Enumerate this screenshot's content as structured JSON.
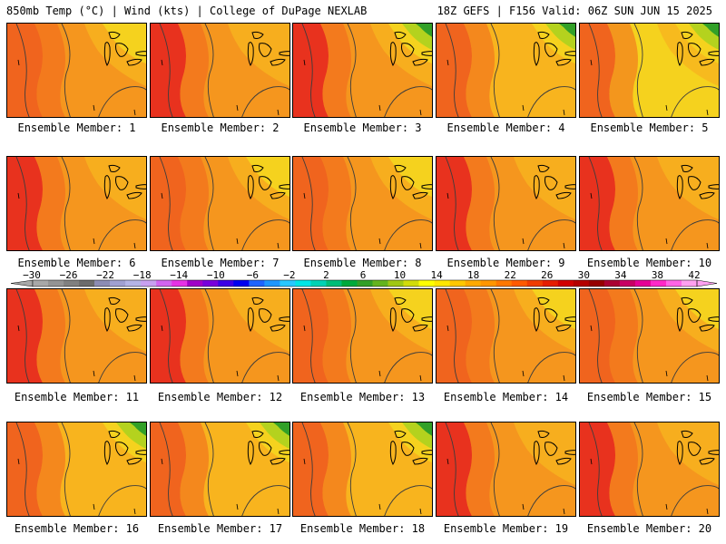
{
  "header": {
    "left": "850mb Temp (°C) | Wind (kts) | College of DuPage NEXLAB",
    "right": "18Z GEFS | F156 Valid: 06Z SUN JUN 15 2025"
  },
  "panels": [
    {
      "label": "Ensemble Member: 1",
      "style": "warm-west"
    },
    {
      "label": "Ensemble Member: 2",
      "style": "hot-west"
    },
    {
      "label": "Ensemble Member: 3",
      "style": "hot-west-green-ne"
    },
    {
      "label": "Ensemble Member: 4",
      "style": "warm-green-ne"
    },
    {
      "label": "Ensemble Member: 5",
      "style": "yellow-green-ne"
    },
    {
      "label": "Ensemble Member: 6",
      "style": "hot-west"
    },
    {
      "label": "Ensemble Member: 7",
      "style": "warm-west"
    },
    {
      "label": "Ensemble Member: 8",
      "style": "warm-west"
    },
    {
      "label": "Ensemble Member: 9",
      "style": "hot-west"
    },
    {
      "label": "Ensemble Member: 10",
      "style": "hot-west"
    },
    {
      "label": "Ensemble Member: 11",
      "style": "hot-west"
    },
    {
      "label": "Ensemble Member: 12",
      "style": "hot-west"
    },
    {
      "label": "Ensemble Member: 13",
      "style": "warm-west"
    },
    {
      "label": "Ensemble Member: 14",
      "style": "warm-west"
    },
    {
      "label": "Ensemble Member: 15",
      "style": "warm-west"
    },
    {
      "label": "Ensemble Member: 16",
      "style": "warm-green-ne"
    },
    {
      "label": "Ensemble Member: 17",
      "style": "warm-green-ne"
    },
    {
      "label": "Ensemble Member: 18",
      "style": "warm-green-ne"
    },
    {
      "label": "Ensemble Member: 19",
      "style": "hot-west"
    },
    {
      "label": "Ensemble Member: 20",
      "style": "hot-west"
    }
  ],
  "colorbar": {
    "labels": [
      "−30",
      "−26",
      "−22",
      "−18",
      "−14",
      "−10",
      "−6",
      "−2",
      "2",
      "6",
      "10",
      "14",
      "18",
      "22",
      "26",
      "30",
      "34",
      "38",
      "42"
    ],
    "colors": [
      "#a8a8a8",
      "#949494",
      "#808080",
      "#6c6c6c",
      "#8c8cb4",
      "#a0a0d2",
      "#b4b4e6",
      "#c8a0f0",
      "#d264f0",
      "#e632e6",
      "#a000c8",
      "#7800dc",
      "#3c00e6",
      "#0000f0",
      "#1e64ff",
      "#1e96ff",
      "#28c8ff",
      "#00e6e6",
      "#00d2b4",
      "#00be78",
      "#00aa3c",
      "#32a028",
      "#64b41e",
      "#a0c814",
      "#d2dc0a",
      "#ffff00",
      "#ffe600",
      "#ffc800",
      "#ffaa00",
      "#ff9600",
      "#ff7800",
      "#ff5a00",
      "#f03c00",
      "#e61e00",
      "#d20000",
      "#b40000",
      "#960000",
      "#aa0032",
      "#c80064",
      "#e60096",
      "#ff28c8",
      "#ff64e6",
      "#ffa0f0"
    ]
  },
  "palette": {
    "hot": "#e8321e",
    "red_orange": "#f0641e",
    "orange": "#f5961e",
    "amber": "#f8b41e",
    "yellow": "#f5d21e",
    "lime": "#b4d21e",
    "green": "#32a028",
    "contour": "#3c3c3c"
  }
}
